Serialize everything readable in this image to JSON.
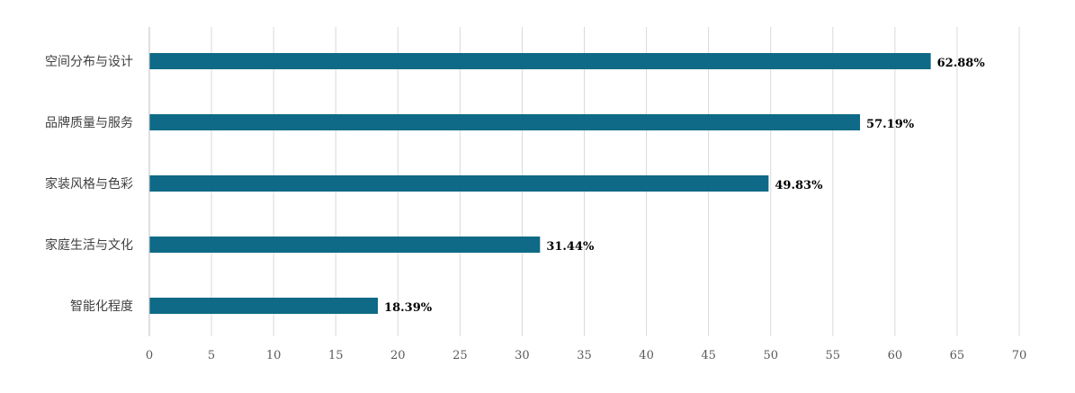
{
  "chart_data": {
    "type": "bar",
    "orientation": "horizontal",
    "categories": [
      "空间分布与设计",
      "品牌质量与服务",
      "家装风格与色彩",
      "家庭生活与文化",
      "智能化程度"
    ],
    "values": [
      62.88,
      57.19,
      49.83,
      31.44,
      18.39
    ],
    "data_labels": [
      "62.88%",
      "57.19%",
      "49.83%",
      "31.44%",
      "18.39%"
    ],
    "xlim": [
      0,
      70
    ],
    "xticks": [
      0,
      5,
      10,
      15,
      20,
      25,
      30,
      35,
      40,
      45,
      50,
      55,
      60,
      65,
      70
    ],
    "grid": true,
    "legend": "none",
    "bar_color": "#0e6a86"
  }
}
